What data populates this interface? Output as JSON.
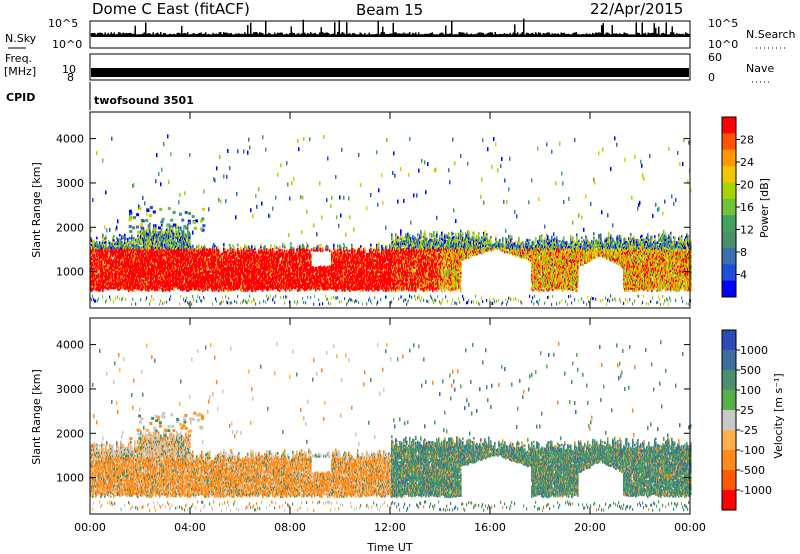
{
  "header": {
    "title": "Dome C East (fitACF)",
    "beam": "Beam 15",
    "date": "22/Apr/2015"
  },
  "top_panels": {
    "nsky_label": "N.Sky",
    "nsky_ticks": [
      "10^5",
      "10^0"
    ],
    "nsearch_label": "N.Search",
    "nsearch_ticks": [
      "10^5",
      "10^0"
    ],
    "freq_label_1": "Freq.",
    "freq_label_2": "[MHz]",
    "freq_ticks": [
      "10",
      "8"
    ],
    "nave_label": "Nave",
    "nave_ticks": [
      "60",
      "0"
    ],
    "cpid_label": "CPID",
    "cpid_value": "twofsound 3501"
  },
  "power_scale": {
    "label": "Power [dB]",
    "ticks": [
      "28",
      "24",
      "20",
      "16",
      "12",
      "8",
      "4"
    ],
    "colors": [
      "#ff0000",
      "#ff5500",
      "#ff9900",
      "#f2c600",
      "#a7d400",
      "#6fc23a",
      "#3fa55a",
      "#4a8e6a",
      "#3a6fb0",
      "#1f4fd8",
      "#0000ff"
    ]
  },
  "velocity_scale": {
    "label": "Velocity [m s⁻¹]",
    "ticks": [
      "1000",
      "500",
      "100",
      "25",
      "-25",
      "-100",
      "-500",
      "-1000"
    ],
    "colors": [
      "#2a4bb8",
      "#3a6fa0",
      "#4a9070",
      "#56b04a",
      "#c8c8c8",
      "#ffb04a",
      "#ff8a1a",
      "#ff5a00",
      "#ff0000"
    ]
  },
  "chart_data": [
    {
      "type": "heatmap",
      "name": "power",
      "ylabel": "Slant Range [km]",
      "yticks": [
        1000,
        2000,
        3000,
        4000
      ],
      "ylim": [
        180,
        4600
      ],
      "xlim": [
        0,
        24
      ],
      "xticks": [
        "00:00",
        "04:00",
        "08:00",
        "12:00",
        "16:00",
        "20:00",
        "00:00"
      ],
      "colorbar_ticks": [
        28,
        24,
        20,
        16,
        12,
        8,
        4
      ],
      "colorbar_label": "Power [dB]"
    },
    {
      "type": "heatmap",
      "name": "velocity",
      "ylabel": "Slant Range [km]",
      "yticks": [
        1000,
        2000,
        3000,
        4000
      ],
      "ylim": [
        180,
        4600
      ],
      "xlim": [
        0,
        24
      ],
      "xlabel": "Time UT",
      "xticks": [
        "00:00",
        "04:00",
        "08:00",
        "12:00",
        "16:00",
        "20:00",
        "00:00"
      ],
      "colorbar_ticks": [
        1000,
        500,
        100,
        25,
        -25,
        -100,
        -500,
        -1000
      ]
    }
  ]
}
